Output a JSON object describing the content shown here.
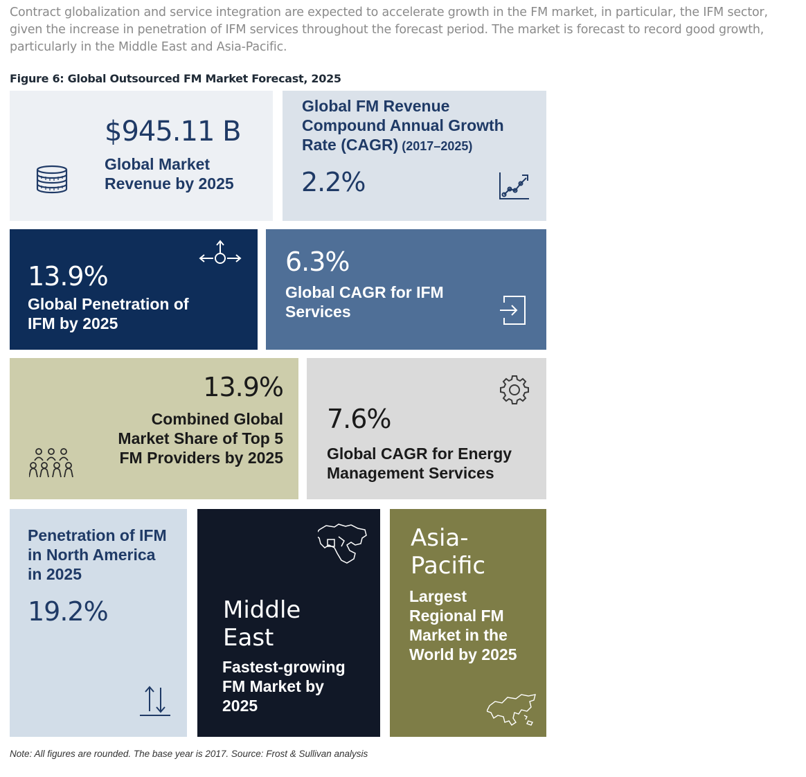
{
  "intro": "Contract globalization and service integration are expected to accelerate growth in the FM market, in particular, the IFM sector, given the increase in penetration of IFM services throughout the forecast period. The market is forecast to record good growth, particularly in the Middle East and Asia-Pacific.",
  "figure_title": "Figure 6: Global Outsourced FM Market Forecast, 2025",
  "tiles": {
    "revenue": {
      "value": "$945.11 B",
      "label_1": "Global Market",
      "label_2": "Revenue by 2025",
      "icon": "coins-icon"
    },
    "fm_cagr": {
      "label_1": "Global FM Revenue",
      "label_2": "Compound Annual Growth",
      "label_3": "Rate (CAGR)",
      "label_3_suffix": " (2017–2025)",
      "value": "2.2%",
      "icon": "growth-chart-icon"
    },
    "ifm_penetration": {
      "value": "13.9%",
      "label_1": "Global Penetration of",
      "label_2": "IFM by 2025",
      "icon": "distribution-arrows-icon"
    },
    "ifm_cagr": {
      "value": "6.3%",
      "label_1": "Global CAGR for IFM",
      "label_2": "Services",
      "icon": "sign-in-icon"
    },
    "top5_share": {
      "value": "13.9%",
      "label_1": "Combined Global",
      "label_2": "Market Share of Top 5",
      "label_3": "FM Providers by 2025",
      "icon": "people-group-icon"
    },
    "energy_cagr": {
      "value": "7.6%",
      "label_1": "Global CAGR for Energy",
      "label_2": "Management Services",
      "icon": "gear-icon"
    },
    "north_america": {
      "label_1": "Penetration of IFM",
      "label_2": "in North America",
      "label_3": "in 2025",
      "value": "19.2%",
      "icon": "up-down-arrows-icon"
    },
    "middle_east": {
      "region_1": "Middle",
      "region_2": "East",
      "label_1": "Fastest-growing",
      "label_2": "FM Market by",
      "label_3": "2025",
      "icon": "middle-east-map-icon"
    },
    "asia_pacific": {
      "region_1": "Asia-",
      "region_2": "Pacific",
      "label_1": "Largest",
      "label_2": "Regional FM",
      "label_3": "Market in the",
      "label_4": "World by 2025",
      "icon": "asia-map-icon"
    }
  },
  "colors": {
    "light_gray_blue": "#edf0f4",
    "pale_blue": "#dbe2ea",
    "navy": "#0e2d59",
    "steel_blue": "#4f6f97",
    "khaki": "#cdcdab",
    "light_gray": "#dadada",
    "pale_slate": "#d2dde8",
    "midnight": "#111827",
    "olive": "#7e7d47",
    "dark_text": "#1f3a66"
  },
  "note": "Note: All figures are rounded. The base year is 2017. Source: Frost & Sullivan analysis"
}
